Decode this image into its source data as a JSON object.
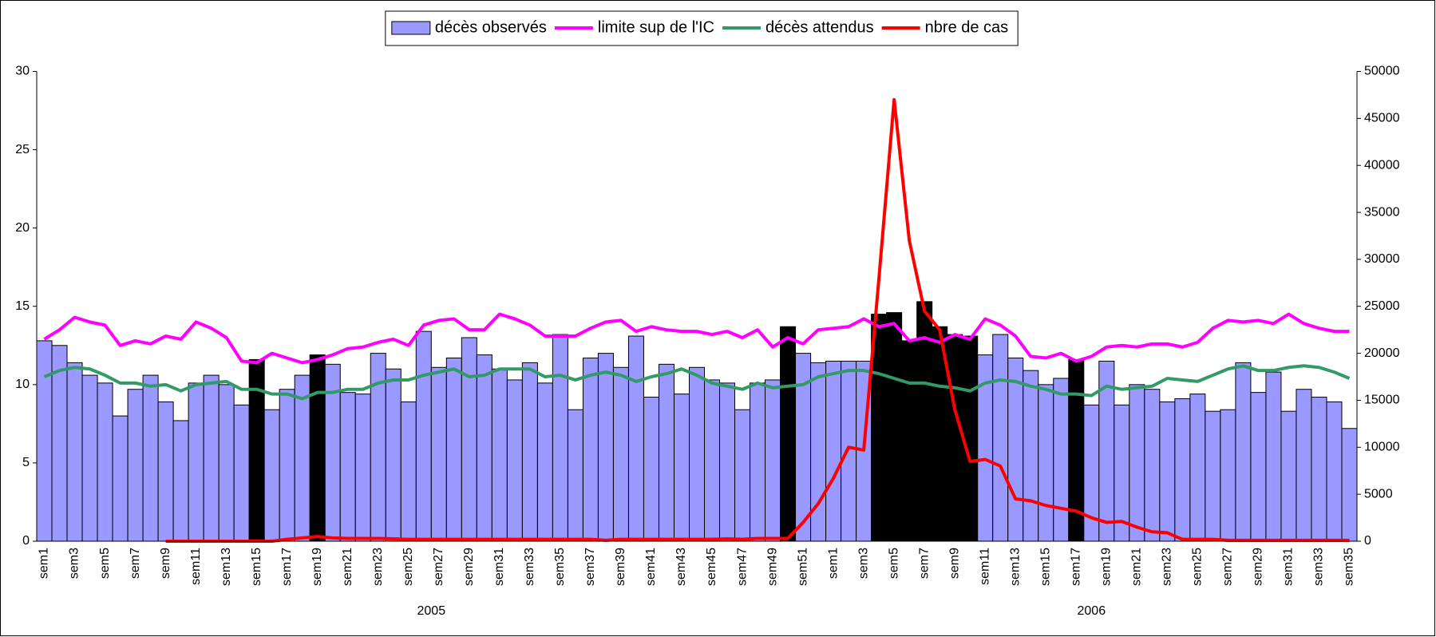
{
  "chart_data": {
    "type": "bar",
    "groups": [
      {
        "label": "2005",
        "categories": [
          "sem1",
          null,
          "sem3",
          null,
          "sem5",
          null,
          "sem7",
          null,
          "sem9",
          null,
          "sem11",
          null,
          "sem13",
          null,
          "sem15",
          null,
          "sem17",
          null,
          "sem19",
          null,
          "sem21",
          null,
          "sem23",
          null,
          "sem25",
          null,
          "sem27",
          null,
          "sem29",
          null,
          "sem31",
          null,
          "sem33",
          null,
          "sem35",
          null,
          "sem37",
          null,
          "sem39",
          null,
          "sem41",
          null,
          "sem43",
          null,
          "sem45",
          null,
          "sem47",
          null,
          "sem49",
          null,
          "sem51",
          null
        ]
      },
      {
        "label": "2006",
        "categories": [
          "sem1",
          null,
          "sem3",
          null,
          "sem5",
          null,
          "sem7",
          null,
          "sem9",
          null,
          "sem11",
          null,
          "sem13",
          null,
          "sem15",
          null,
          "sem17",
          null,
          "sem19",
          null,
          "sem21",
          null,
          "sem23",
          null,
          "sem25",
          null,
          "sem27",
          null,
          "sem29",
          null,
          "sem31",
          null,
          "sem33",
          null,
          "sem35"
        ]
      }
    ],
    "series": [
      {
        "name": "décès observés",
        "type": "bar",
        "color": "#9999ff",
        "highlight_color": "#000000",
        "highlight_indices": [
          14,
          18,
          49,
          55,
          56,
          57,
          58,
          59,
          60,
          61,
          68
        ],
        "values": [
          12.8,
          12.5,
          11.4,
          10.6,
          10.1,
          8.0,
          9.7,
          10.6,
          8.9,
          7.7,
          10.1,
          10.6,
          10.0,
          8.7,
          11.6,
          8.4,
          9.7,
          10.6,
          11.9,
          11.3,
          9.5,
          9.4,
          12.0,
          11.0,
          8.9,
          13.4,
          11.1,
          11.7,
          13.0,
          11.9,
          11.0,
          10.3,
          11.4,
          10.1,
          13.2,
          8.4,
          11.7,
          12.0,
          11.1,
          13.1,
          9.2,
          11.3,
          9.4,
          11.1,
          10.3,
          10.1,
          8.4,
          10.1,
          10.3,
          13.7,
          12.0,
          11.4,
          11.5,
          11.5,
          11.5,
          14.5,
          14.6,
          12.8,
          15.3,
          13.7,
          13.2,
          13.1,
          11.9,
          13.2,
          11.7,
          10.9,
          10.0,
          10.4,
          11.6,
          8.7,
          11.5,
          8.7,
          10.0,
          9.7,
          8.9,
          9.1,
          9.4,
          8.3,
          8.4,
          11.4,
          9.5,
          10.8,
          8.3,
          9.7,
          9.2,
          8.9,
          7.2
        ]
      },
      {
        "name": "limite sup de l'IC",
        "type": "line",
        "color": "#ff00ff",
        "values": [
          12.9,
          13.5,
          14.3,
          14.0,
          13.8,
          12.5,
          12.8,
          12.6,
          13.1,
          12.9,
          14.0,
          13.6,
          13.0,
          11.5,
          11.4,
          12.0,
          11.7,
          11.4,
          11.6,
          11.9,
          12.3,
          12.4,
          12.7,
          12.9,
          12.5,
          13.8,
          14.1,
          14.2,
          13.5,
          13.5,
          14.5,
          14.2,
          13.8,
          13.1,
          13.1,
          13.1,
          13.6,
          14.0,
          14.1,
          13.4,
          13.7,
          13.5,
          13.4,
          13.4,
          13.2,
          13.4,
          13.0,
          13.5,
          12.4,
          13.0,
          12.6,
          13.5,
          13.6,
          13.7,
          14.2,
          13.7,
          13.9,
          12.8,
          13.0,
          12.7,
          13.2,
          12.9,
          14.2,
          13.8,
          13.1,
          11.8,
          11.7,
          12.0,
          11.5,
          11.8,
          12.4,
          12.5,
          12.4,
          12.6,
          12.6,
          12.4,
          12.7,
          13.6,
          14.1,
          14.0,
          14.1,
          13.9,
          14.5,
          13.9,
          13.6,
          13.4,
          13.4
        ]
      },
      {
        "name": "décès attendus",
        "type": "line",
        "color": "#339966",
        "values": [
          10.5,
          10.9,
          11.1,
          11.0,
          10.6,
          10.1,
          10.1,
          9.9,
          10.0,
          9.6,
          10.0,
          10.1,
          10.2,
          9.7,
          9.7,
          9.4,
          9.4,
          9.1,
          9.5,
          9.5,
          9.7,
          9.7,
          10.1,
          10.3,
          10.3,
          10.6,
          10.8,
          11.0,
          10.5,
          10.6,
          11.0,
          11.0,
          11.0,
          10.5,
          10.6,
          10.3,
          10.6,
          10.8,
          10.6,
          10.2,
          10.5,
          10.7,
          11.0,
          10.6,
          10.1,
          9.9,
          9.7,
          10.1,
          9.8,
          9.9,
          10.0,
          10.5,
          10.7,
          10.9,
          10.9,
          10.7,
          10.4,
          10.1,
          10.1,
          9.9,
          9.8,
          9.6,
          10.1,
          10.3,
          10.2,
          9.9,
          9.7,
          9.4,
          9.4,
          9.3,
          9.9,
          9.7,
          9.8,
          9.9,
          10.4,
          10.3,
          10.2,
          10.6,
          11.0,
          11.2,
          10.9,
          10.9,
          11.1,
          11.2,
          11.1,
          10.8,
          10.4
        ]
      },
      {
        "name": "nbre de cas",
        "type": "line",
        "color": "#ff0000",
        "axis": "y2",
        "values": [
          null,
          null,
          null,
          null,
          null,
          null,
          null,
          null,
          0,
          0,
          0,
          0,
          0,
          0,
          0,
          0,
          200,
          350,
          500,
          350,
          300,
          300,
          300,
          250,
          200,
          200,
          200,
          200,
          200,
          200,
          200,
          200,
          200,
          200,
          200,
          200,
          200,
          100,
          200,
          200,
          200,
          200,
          200,
          200,
          200,
          250,
          200,
          300,
          300,
          300,
          2000,
          4000,
          6700,
          10000,
          9700,
          28000,
          47000,
          32000,
          24500,
          22500,
          14000,
          8500,
          8700,
          8000,
          4500,
          4300,
          3800,
          3500,
          3200,
          2500,
          2000,
          2100,
          1500,
          1000,
          900,
          200,
          200,
          200,
          100,
          100,
          100,
          100,
          100,
          100,
          100,
          100,
          100
        ]
      }
    ],
    "ylim": [
      0,
      30
    ],
    "yticks": [
      0,
      5,
      10,
      15,
      20,
      25,
      30
    ],
    "y2lim": [
      0,
      50000
    ],
    "y2ticks": [
      0,
      5000,
      10000,
      15000,
      20000,
      25000,
      30000,
      35000,
      40000,
      45000,
      50000
    ]
  }
}
